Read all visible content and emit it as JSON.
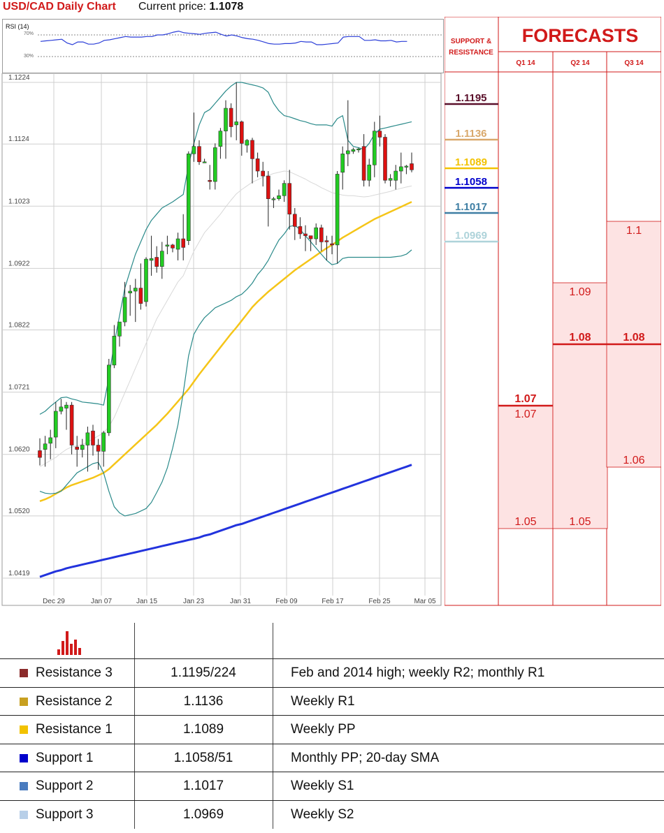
{
  "header": {
    "chart_title": "USD/CAD Daily Chart",
    "price_label": "Current price:",
    "current_price": "1.1078"
  },
  "rsi": {
    "label": "RSI (14)",
    "level_high": "70%",
    "level_low": "30%",
    "values": [
      58,
      59,
      60,
      61,
      62,
      55,
      52,
      57,
      57,
      53,
      53,
      55,
      60,
      61,
      63,
      65,
      67,
      66,
      66,
      66,
      67,
      67,
      70,
      70,
      72,
      75,
      77,
      74,
      73,
      72,
      71,
      73,
      74,
      75,
      71,
      68,
      70,
      68,
      65,
      63,
      62,
      60,
      57,
      54,
      53,
      53,
      54,
      54,
      55,
      58,
      57,
      57,
      52,
      52,
      53,
      54,
      55,
      66,
      67,
      67,
      67,
      60,
      60,
      61,
      59,
      59,
      60,
      57,
      58,
      58
    ]
  },
  "forecast": {
    "title": "FORECASTS",
    "sr_header": "SUPPORT & RESISTANCE",
    "columns": [
      "Q1 14",
      "Q2 14",
      "Q3 14"
    ],
    "sr_levels": [
      {
        "value": "1.1195",
        "color": "#5a0f2a"
      },
      {
        "value": "1.1136",
        "color": "#d9a86b"
      },
      {
        "value": "1.1089",
        "color": "#f2c200"
      },
      {
        "value": "1.1058",
        "color": "#0000cc"
      },
      {
        "value": "1.1017",
        "color": "#3e7ea3"
      },
      {
        "value": "1.0969",
        "color": "#aed3da"
      }
    ],
    "q1": {
      "median": "1.07",
      "high": "1.07",
      "low": "1.05",
      "hv": 1.07,
      "lv": 1.05,
      "mv": 1.07
    },
    "q2": {
      "median": "1.08",
      "high": "1.09",
      "low": "1.05",
      "hv": 1.09,
      "lv": 1.05,
      "mv": 1.08
    },
    "q3": {
      "median": "1.08",
      "high": "1.1",
      "low": "1.06",
      "hv": 1.1,
      "lv": 1.06,
      "mv": 1.08
    }
  },
  "chart_data": {
    "type": "candlestick",
    "title": "USD/CAD Daily Chart",
    "ylim": [
      1.0419,
      1.1224
    ],
    "y_ticks": [
      "1.1224",
      "1.1124",
      "1.1023",
      "1.0922",
      "1.0822",
      "1.0721",
      "1.0620",
      "1.0520",
      "1.0419"
    ],
    "x_ticks": [
      "Dec 29",
      "Jan 07",
      "Jan 15",
      "Jan 23",
      "Jan 31",
      "Feb 09",
      "Feb 17",
      "Feb 25",
      "Mar 05"
    ],
    "candles": [
      [
        1.0626,
        1.0646,
        1.0602,
        1.0615
      ],
      [
        1.0628,
        1.065,
        1.06,
        1.0637
      ],
      [
        1.0638,
        1.066,
        1.0612,
        1.0647
      ],
      [
        1.0648,
        1.0705,
        1.063,
        1.069
      ],
      [
        1.069,
        1.071,
        1.0685,
        1.0697
      ],
      [
        1.0695,
        1.0705,
        1.066,
        1.07
      ],
      [
        1.07,
        1.0705,
        1.062,
        1.0635
      ],
      [
        1.0632,
        1.065,
        1.06,
        1.0628
      ],
      [
        1.0628,
        1.0645,
        1.0615,
        1.0635
      ],
      [
        1.0635,
        1.0665,
        1.0592,
        1.0655
      ],
      [
        1.0658,
        1.0668,
        1.0618,
        1.0635
      ],
      [
        1.0635,
        1.0645,
        1.0595,
        1.0625
      ],
      [
        1.0625,
        1.0658,
        1.06,
        1.0655
      ],
      [
        1.0655,
        1.0775,
        1.065,
        1.0765
      ],
      [
        1.0765,
        1.083,
        1.076,
        1.0812
      ],
      [
        1.0812,
        1.0835,
        1.0795,
        1.0835
      ],
      [
        1.0835,
        1.09,
        1.0828,
        1.0875
      ],
      [
        1.0882,
        1.0895,
        1.0845,
        1.0885
      ],
      [
        1.0885,
        1.0905,
        1.0835,
        1.089
      ],
      [
        1.089,
        1.093,
        1.0855,
        1.0865
      ],
      [
        1.0868,
        1.094,
        1.086,
        1.0937
      ],
      [
        1.0935,
        1.0975,
        1.091,
        1.0938
      ],
      [
        1.094,
        1.0958,
        1.0915,
        1.0925
      ],
      [
        1.0925,
        1.0965,
        1.0905,
        1.095
      ],
      [
        1.0958,
        1.0975,
        1.0945,
        1.096
      ],
      [
        1.096,
        1.0962,
        1.0948,
        1.0955
      ],
      [
        1.0953,
        1.098,
        1.0935,
        1.097
      ],
      [
        1.097,
        1.101,
        1.0935,
        1.0956
      ],
      [
        1.0967,
        1.1112,
        1.096,
        1.1108
      ],
      [
        1.1108,
        1.1175,
        1.1095,
        1.112
      ],
      [
        1.112,
        1.113,
        1.109,
        1.1095
      ],
      [
        1.1095,
        1.11,
        1.1093,
        1.1095
      ],
      [
        1.1065,
        1.109,
        1.105,
        1.1063
      ],
      [
        1.1063,
        1.1125,
        1.105,
        1.1118
      ],
      [
        1.112,
        1.115,
        1.11,
        1.1145
      ],
      [
        1.1145,
        1.1195,
        1.11,
        1.1182
      ],
      [
        1.1182,
        1.119,
        1.1135,
        1.1152
      ],
      [
        1.1155,
        1.1224,
        1.113,
        1.116
      ],
      [
        1.116,
        1.1162,
        1.1105,
        1.1125
      ],
      [
        1.1122,
        1.1132,
        1.111,
        1.113
      ],
      [
        1.113,
        1.1134,
        1.106,
        1.11
      ],
      [
        1.11,
        1.111,
        1.107,
        1.108
      ],
      [
        1.108,
        1.1095,
        1.1055,
        1.1072
      ],
      [
        1.1072,
        1.108,
        1.099,
        1.1035
      ],
      [
        1.1035,
        1.1038,
        1.102,
        1.1035
      ],
      [
        1.1035,
        1.105,
        1.1032,
        1.104
      ],
      [
        1.104,
        1.1065,
        1.103,
        1.106
      ],
      [
        1.106,
        1.1082,
        1.0985,
        1.101
      ],
      [
        1.101,
        1.102,
        1.0968,
        1.099
      ],
      [
        1.099,
        1.1005,
        1.097,
        1.0978
      ],
      [
        1.0978,
        1.0992,
        1.095,
        1.0975
      ],
      [
        1.0975,
        1.0975,
        1.095,
        1.097
      ],
      [
        1.097,
        1.0995,
        1.096,
        1.0988
      ],
      [
        1.0988,
        1.0993,
        1.095,
        1.0965
      ],
      [
        1.0967,
        1.0975,
        1.0935,
        1.0965
      ],
      [
        1.0962,
        1.0975,
        1.0945,
        1.096
      ],
      [
        1.096,
        1.108,
        1.093,
        1.1075
      ],
      [
        1.1078,
        1.112,
        1.105,
        1.1108
      ],
      [
        1.1108,
        1.1195,
        1.1088,
        1.1113
      ],
      [
        1.1112,
        1.1118,
        1.1108,
        1.1115
      ],
      [
        1.1115,
        1.1118,
        1.111,
        1.1116
      ],
      [
        1.112,
        1.114,
        1.1055,
        1.1065
      ],
      [
        1.1065,
        1.11,
        1.1055,
        1.109
      ],
      [
        1.109,
        1.116,
        1.107,
        1.1145
      ],
      [
        1.1145,
        1.117,
        1.112,
        1.1135
      ],
      [
        1.1135,
        1.114,
        1.106,
        1.1065
      ],
      [
        1.1065,
        1.1075,
        1.1055,
        1.1068
      ],
      [
        1.1065,
        1.109,
        1.105,
        1.108
      ],
      [
        1.108,
        1.111,
        1.106,
        1.1087
      ],
      [
        1.1087,
        1.109,
        1.1075,
        1.1088
      ],
      [
        1.1092,
        1.111,
        1.1078,
        1.1082
      ]
    ],
    "bb_upper": [
      1.0685,
      1.069,
      1.0698,
      1.0705,
      1.0712,
      1.0713,
      1.071,
      1.0708,
      1.0705,
      1.0704,
      1.0703,
      1.0702,
      1.07,
      1.0745,
      1.08,
      1.0845,
      1.089,
      1.0918,
      1.0945,
      1.0965,
      1.0985,
      1.1,
      1.101,
      1.102,
      1.1025,
      1.103,
      1.1036,
      1.1042,
      1.109,
      1.1125,
      1.1155,
      1.1175,
      1.118,
      1.119,
      1.12,
      1.121,
      1.1218,
      1.1224,
      1.1224,
      1.1222,
      1.122,
      1.1218,
      1.1215,
      1.1208,
      1.119,
      1.1178,
      1.117,
      1.1168,
      1.1165,
      1.1162,
      1.116,
      1.1157,
      1.1155,
      1.1155,
      1.1155,
      1.1153,
      1.1165,
      1.117,
      1.113,
      1.112,
      1.1118,
      1.1115,
      1.1125,
      1.114,
      1.1148,
      1.115,
      1.1152,
      1.1154,
      1.1156,
      1.1158,
      1.116
    ],
    "bb_middle": [
      1.06,
      1.0605,
      1.061,
      1.0615,
      1.0622,
      1.0628,
      1.0632,
      1.0634,
      1.0636,
      1.064,
      1.0645,
      1.065,
      1.0655,
      1.0665,
      1.068,
      1.07,
      1.072,
      1.074,
      1.076,
      1.078,
      1.08,
      1.082,
      1.084,
      1.0855,
      1.087,
      1.0885,
      1.09,
      1.091,
      1.093,
      1.095,
      1.0965,
      1.098,
      1.099,
      1.1,
      1.101,
      1.1022,
      1.1033,
      1.1043,
      1.105,
      1.1056,
      1.1062,
      1.1066,
      1.107,
      1.1073,
      1.1076,
      1.1078,
      1.108,
      1.1079,
      1.1075,
      1.1071,
      1.1067,
      1.1062,
      1.1058,
      1.1053,
      1.1049,
      1.1045,
      1.1043,
      1.1041,
      1.104,
      1.104,
      1.1039,
      1.1038,
      1.1039,
      1.1041,
      1.1043,
      1.1045,
      1.1047,
      1.105,
      1.1052,
      1.1054,
      1.1056
    ],
    "bb_lower": [
      1.056,
      1.0557,
      1.0556,
      1.0557,
      1.056,
      1.057,
      1.058,
      1.059,
      1.0595,
      1.06,
      1.0605,
      1.0607,
      1.059,
      1.056,
      1.0535,
      1.0525,
      1.052,
      1.0522,
      1.0524,
      1.0528,
      1.0532,
      1.0542,
      1.0558,
      1.0575,
      1.0598,
      1.063,
      1.0668,
      1.072,
      1.078,
      1.0815,
      1.083,
      1.0842,
      1.085,
      1.0858,
      1.0862,
      1.0866,
      1.087,
      1.0876,
      1.088,
      1.0888,
      1.0898,
      1.0912,
      1.0922,
      1.0935,
      1.0952,
      1.0968,
      1.0978,
      1.099,
      1.0992,
      1.0985,
      1.0975,
      1.0965,
      1.0955,
      1.0945,
      1.0935,
      1.0928,
      1.093,
      1.0938,
      1.094,
      1.094,
      1.094,
      1.094,
      1.094,
      1.094,
      1.094,
      1.094,
      1.094,
      1.0941,
      1.0942,
      1.0945,
      1.0952
    ],
    "sma_yellow": [
      1.0544,
      1.0547,
      1.0551,
      1.0556,
      1.0561,
      1.0566,
      1.057,
      1.0573,
      1.0576,
      1.0579,
      1.0582,
      1.0586,
      1.059,
      1.0596,
      1.0604,
      1.0612,
      1.062,
      1.0628,
      1.0636,
      1.0644,
      1.0652,
      1.066,
      1.0668,
      1.0677,
      1.0686,
      1.0696,
      1.0706,
      1.0716,
      1.0726,
      1.0738,
      1.075,
      1.0761,
      1.0772,
      1.0783,
      1.0794,
      1.0805,
      1.0816,
      1.0826,
      1.0837,
      1.0848,
      1.0859,
      1.0868,
      1.0876,
      1.0884,
      1.0891,
      1.0898,
      1.0905,
      1.0912,
      1.0919,
      1.0925,
      1.0931,
      1.0937,
      1.0943,
      1.0949,
      1.0955,
      1.096,
      1.0966,
      1.0972,
      1.0977,
      1.0982,
      1.0987,
      1.0992,
      1.0997,
      1.1002,
      1.1006,
      1.101,
      1.1014,
      1.1018,
      1.1022,
      1.1026,
      1.103
    ],
    "sma_blue": [
      1.0421,
      1.0424,
      1.0427,
      1.043,
      1.0432,
      1.0435,
      1.0437,
      1.0439,
      1.0441,
      1.0443,
      1.0445,
      1.0447,
      1.0449,
      1.0451,
      1.0453,
      1.0455,
      1.0457,
      1.0459,
      1.0461,
      1.0463,
      1.0465,
      1.0467,
      1.0469,
      1.0471,
      1.0473,
      1.0475,
      1.0477,
      1.0479,
      1.0481,
      1.0483,
      1.0485,
      1.0488,
      1.049,
      1.0493,
      1.0496,
      1.0499,
      1.0502,
      1.0505,
      1.0507,
      1.051,
      1.0513,
      1.0516,
      1.0519,
      1.0522,
      1.0525,
      1.0528,
      1.0531,
      1.0534,
      1.0537,
      1.054,
      1.0543,
      1.0546,
      1.0549,
      1.0552,
      1.0555,
      1.0558,
      1.0561,
      1.0564,
      1.0567,
      1.057,
      1.0573,
      1.0576,
      1.0579,
      1.0582,
      1.0585,
      1.0588,
      1.0591,
      1.0594,
      1.0597,
      1.06,
      1.0603
    ],
    "colors": {
      "up": "#22cc22",
      "down": "#dd1111",
      "bb": "#2a8a8a",
      "bb_mid": "#d8d8d8",
      "sma_yellow": "#f5c518",
      "sma_blue": "#2233dd",
      "grid": "#cfcfcf"
    }
  },
  "table": {
    "icon": "bar-chart-icon",
    "rows": [
      {
        "level": "Resistance 3",
        "value": "1.1195/224",
        "comment": "Feb and 2014 high; weekly R2; monthly R1",
        "color": "#8b2a2a"
      },
      {
        "level": "Resistance 2",
        "value": "1.1136",
        "comment": "Weekly R1",
        "color": "#c8a020"
      },
      {
        "level": "Resistance 1",
        "value": "1.1089",
        "comment": "Weekly PP",
        "color": "#f2c200"
      },
      {
        "level": "Support 1",
        "value": "1.1058/51",
        "comment": "Monthly PP; 20-day SMA",
        "color": "#0000cc"
      },
      {
        "level": "Support 2",
        "value": "1.1017",
        "comment": "Weekly S1",
        "color": "#4a7cbf"
      },
      {
        "level": "Support 3",
        "value": "1.0969",
        "comment": "Weekly S2",
        "color": "#b8cfe8"
      }
    ]
  }
}
